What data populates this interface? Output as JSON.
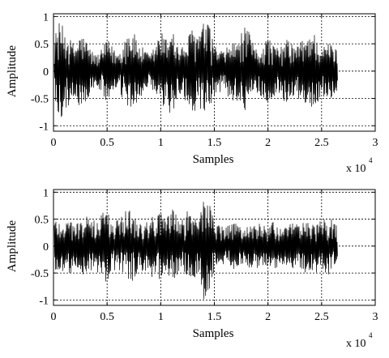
{
  "chart_data": [
    {
      "type": "line",
      "xlabel": "Samples",
      "ylabel": "Amplitude",
      "x_multiplier_label": "x 10",
      "x_multiplier_exponent": "4",
      "xlim": [
        0,
        3
      ],
      "ylim": [
        -1.1,
        1.05
      ],
      "xticks": [
        "0",
        "0.5",
        "1",
        "1.5",
        "2",
        "2.5",
        "3"
      ],
      "xtick_values": [
        0,
        0.5,
        1,
        1.5,
        2,
        2.5,
        3
      ],
      "yticks": [
        "1",
        "0.5",
        "0",
        "-0.5",
        "-1"
      ],
      "ytick_values": [
        1,
        0.5,
        0,
        -0.5,
        -1
      ],
      "grid": true,
      "series": [
        {
          "x_end": 2.65,
          "envelope_x": [
            0,
            0.05,
            0.1,
            0.15,
            0.2,
            0.25,
            0.3,
            0.35,
            0.4,
            0.45,
            0.5,
            0.55,
            0.6,
            0.65,
            0.7,
            0.75,
            0.8,
            0.85,
            0.9,
            0.95,
            1.0,
            1.05,
            1.1,
            1.15,
            1.2,
            1.25,
            1.3,
            1.35,
            1.4,
            1.45,
            1.5,
            1.55,
            1.6,
            1.65,
            1.7,
            1.75,
            1.8,
            1.85,
            1.9,
            1.95,
            2.0,
            2.05,
            2.1,
            2.15,
            2.2,
            2.25,
            2.3,
            2.35,
            2.4,
            2.45,
            2.5,
            2.55,
            2.6,
            2.65
          ],
          "envelope": [
            0.6,
            0.9,
            0.8,
            0.6,
            0.5,
            0.7,
            0.6,
            0.4,
            0.3,
            0.4,
            0.6,
            0.45,
            0.35,
            0.55,
            0.8,
            0.7,
            0.5,
            0.4,
            0.3,
            0.5,
            0.75,
            0.6,
            0.95,
            0.5,
            0.45,
            0.6,
            0.85,
            0.7,
            0.9,
            0.85,
            0.5,
            0.4,
            0.35,
            0.6,
            0.5,
            0.7,
            0.85,
            0.55,
            0.4,
            0.5,
            0.65,
            0.5,
            0.4,
            0.55,
            0.6,
            0.45,
            0.55,
            0.6,
            0.8,
            0.65,
            0.45,
            0.5,
            0.55,
            0.35
          ]
        }
      ]
    },
    {
      "type": "line",
      "xlabel": "Samples",
      "ylabel": "Amplitude",
      "x_multiplier_label": "x 10",
      "x_multiplier_exponent": "4",
      "xlim": [
        0,
        3
      ],
      "ylim": [
        -1.1,
        1.05
      ],
      "xticks": [
        "0",
        "0.5",
        "1",
        "1.5",
        "2",
        "2.5",
        "3"
      ],
      "xtick_values": [
        0,
        0.5,
        1,
        1.5,
        2,
        2.5,
        3
      ],
      "yticks": [
        "1",
        "0.5",
        "0",
        "-0.5",
        "-1"
      ],
      "ytick_values": [
        1,
        0.5,
        0,
        -0.5,
        -1
      ],
      "grid": true,
      "series": [
        {
          "x_end": 2.65,
          "envelope_x": [
            0,
            0.05,
            0.1,
            0.15,
            0.2,
            0.25,
            0.3,
            0.35,
            0.4,
            0.45,
            0.5,
            0.55,
            0.6,
            0.65,
            0.7,
            0.75,
            0.8,
            0.85,
            0.9,
            0.95,
            1.0,
            1.05,
            1.1,
            1.15,
            1.2,
            1.25,
            1.3,
            1.35,
            1.4,
            1.45,
            1.5,
            1.55,
            1.6,
            1.65,
            1.7,
            1.75,
            1.8,
            1.85,
            1.9,
            1.95,
            2.0,
            2.05,
            2.1,
            2.15,
            2.2,
            2.25,
            2.3,
            2.35,
            2.4,
            2.45,
            2.5,
            2.55,
            2.6,
            2.65
          ],
          "envelope": [
            0.55,
            0.5,
            0.45,
            0.55,
            0.4,
            0.5,
            0.6,
            0.45,
            0.5,
            0.65,
            0.7,
            0.45,
            0.5,
            0.6,
            0.8,
            0.6,
            0.45,
            0.5,
            0.6,
            0.55,
            0.65,
            0.5,
            0.75,
            0.55,
            0.5,
            0.7,
            0.6,
            0.55,
            1.0,
            0.85,
            0.5,
            0.4,
            0.35,
            0.4,
            0.45,
            0.35,
            0.4,
            0.4,
            0.45,
            0.4,
            0.4,
            0.45,
            0.4,
            0.35,
            0.4,
            0.45,
            0.4,
            0.5,
            0.45,
            0.5,
            0.45,
            0.55,
            0.5,
            0.35
          ]
        }
      ]
    }
  ]
}
